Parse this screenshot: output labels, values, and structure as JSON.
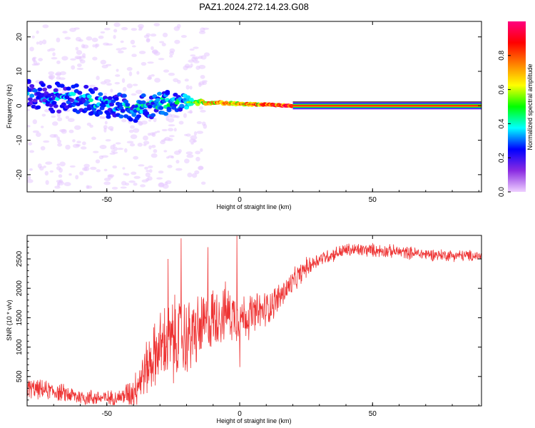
{
  "title": "PAZ1.2024.272.14.23.G08",
  "chart_data": [
    {
      "type": "heatmap",
      "name": "spectrogram",
      "xlabel": "Height of straight line (km)",
      "ylabel": "Frequency (Hz)",
      "xlim": [
        -80,
        91
      ],
      "ylim": [
        -25,
        24.5
      ],
      "xticks": [
        -50,
        0,
        50
      ],
      "yticks": [
        -20,
        -10,
        0,
        10,
        20
      ],
      "colorbar": {
        "label": "Normalized spectral amplitude",
        "range": [
          0,
          1
        ],
        "ticks": [
          "0.0",
          "0.2",
          "0.4",
          "0.6",
          "0.8"
        ],
        "colors": [
          "#efd0ff",
          "#8a2be2",
          "#0000ff",
          "#00ffff",
          "#00ff00",
          "#ffff00",
          "#ff8000",
          "#ff0000",
          "#ff0080"
        ]
      },
      "ridge": [
        {
          "x": -80,
          "freq": 3,
          "spread": 9,
          "amp": 0.3
        },
        {
          "x": -60,
          "freq": 2,
          "spread": 8,
          "amp": 0.35
        },
        {
          "x": -40,
          "freq": -1,
          "spread": 7,
          "amp": 0.38
        },
        {
          "x": -28,
          "freq": 1,
          "spread": 7,
          "amp": 0.4
        },
        {
          "x": -20,
          "freq": 1,
          "spread": 4,
          "amp": 0.45
        },
        {
          "x": -10,
          "freq": 1,
          "spread": 1.5,
          "amp": 0.65
        },
        {
          "x": 0,
          "freq": 0.5,
          "spread": 1,
          "amp": 0.7
        },
        {
          "x": 10,
          "freq": 0.3,
          "spread": 0.8,
          "amp": 0.75
        },
        {
          "x": 20,
          "freq": 0,
          "spread": 0.5,
          "amp": 0.85
        },
        {
          "x": 91,
          "freq": 0,
          "spread": 0.5,
          "amp": 0.9
        }
      ]
    },
    {
      "type": "line",
      "name": "snr",
      "xlabel": "Height of straight line (km)",
      "ylabel": "SNR (10 * v/v)",
      "xlim": [
        -80,
        91
      ],
      "ylim": [
        0,
        2900
      ],
      "xticks": [
        -50,
        0,
        50
      ],
      "yticks": [
        500,
        1000,
        1500,
        2000,
        2500
      ],
      "color": "#ee3333",
      "trend": [
        {
          "x": -80,
          "y": 300
        },
        {
          "x": -70,
          "y": 250
        },
        {
          "x": -60,
          "y": 150
        },
        {
          "x": -50,
          "y": 130
        },
        {
          "x": -45,
          "y": 150
        },
        {
          "x": -40,
          "y": 250
        },
        {
          "x": -35,
          "y": 650
        },
        {
          "x": -30,
          "y": 1000
        },
        {
          "x": -25,
          "y": 1100
        },
        {
          "x": -20,
          "y": 1150
        },
        {
          "x": -15,
          "y": 1300
        },
        {
          "x": -10,
          "y": 1500
        },
        {
          "x": -5,
          "y": 1600
        },
        {
          "x": 0,
          "y": 1500
        },
        {
          "x": 5,
          "y": 1550
        },
        {
          "x": 10,
          "y": 1650
        },
        {
          "x": 15,
          "y": 1850
        },
        {
          "x": 20,
          "y": 2100
        },
        {
          "x": 25,
          "y": 2350
        },
        {
          "x": 30,
          "y": 2500
        },
        {
          "x": 40,
          "y": 2650
        },
        {
          "x": 50,
          "y": 2650
        },
        {
          "x": 60,
          "y": 2620
        },
        {
          "x": 70,
          "y": 2580
        },
        {
          "x": 80,
          "y": 2560
        },
        {
          "x": 91,
          "y": 2550
        }
      ],
      "noise": [
        {
          "x": -80,
          "amp": 200
        },
        {
          "x": -45,
          "amp": 150
        },
        {
          "x": -35,
          "amp": 550
        },
        {
          "x": -25,
          "amp": 900
        },
        {
          "x": -15,
          "amp": 700
        },
        {
          "x": 0,
          "amp": 500
        },
        {
          "x": 15,
          "amp": 300
        },
        {
          "x": 30,
          "amp": 150
        },
        {
          "x": 91,
          "amp": 110
        }
      ],
      "spikes": [
        {
          "x": -22,
          "y": 2850
        },
        {
          "x": -27,
          "y": 2500
        },
        {
          "x": -1,
          "y": 2900
        },
        {
          "x": 0,
          "y": 660
        },
        {
          "x": -12,
          "y": 2700
        }
      ]
    }
  ]
}
